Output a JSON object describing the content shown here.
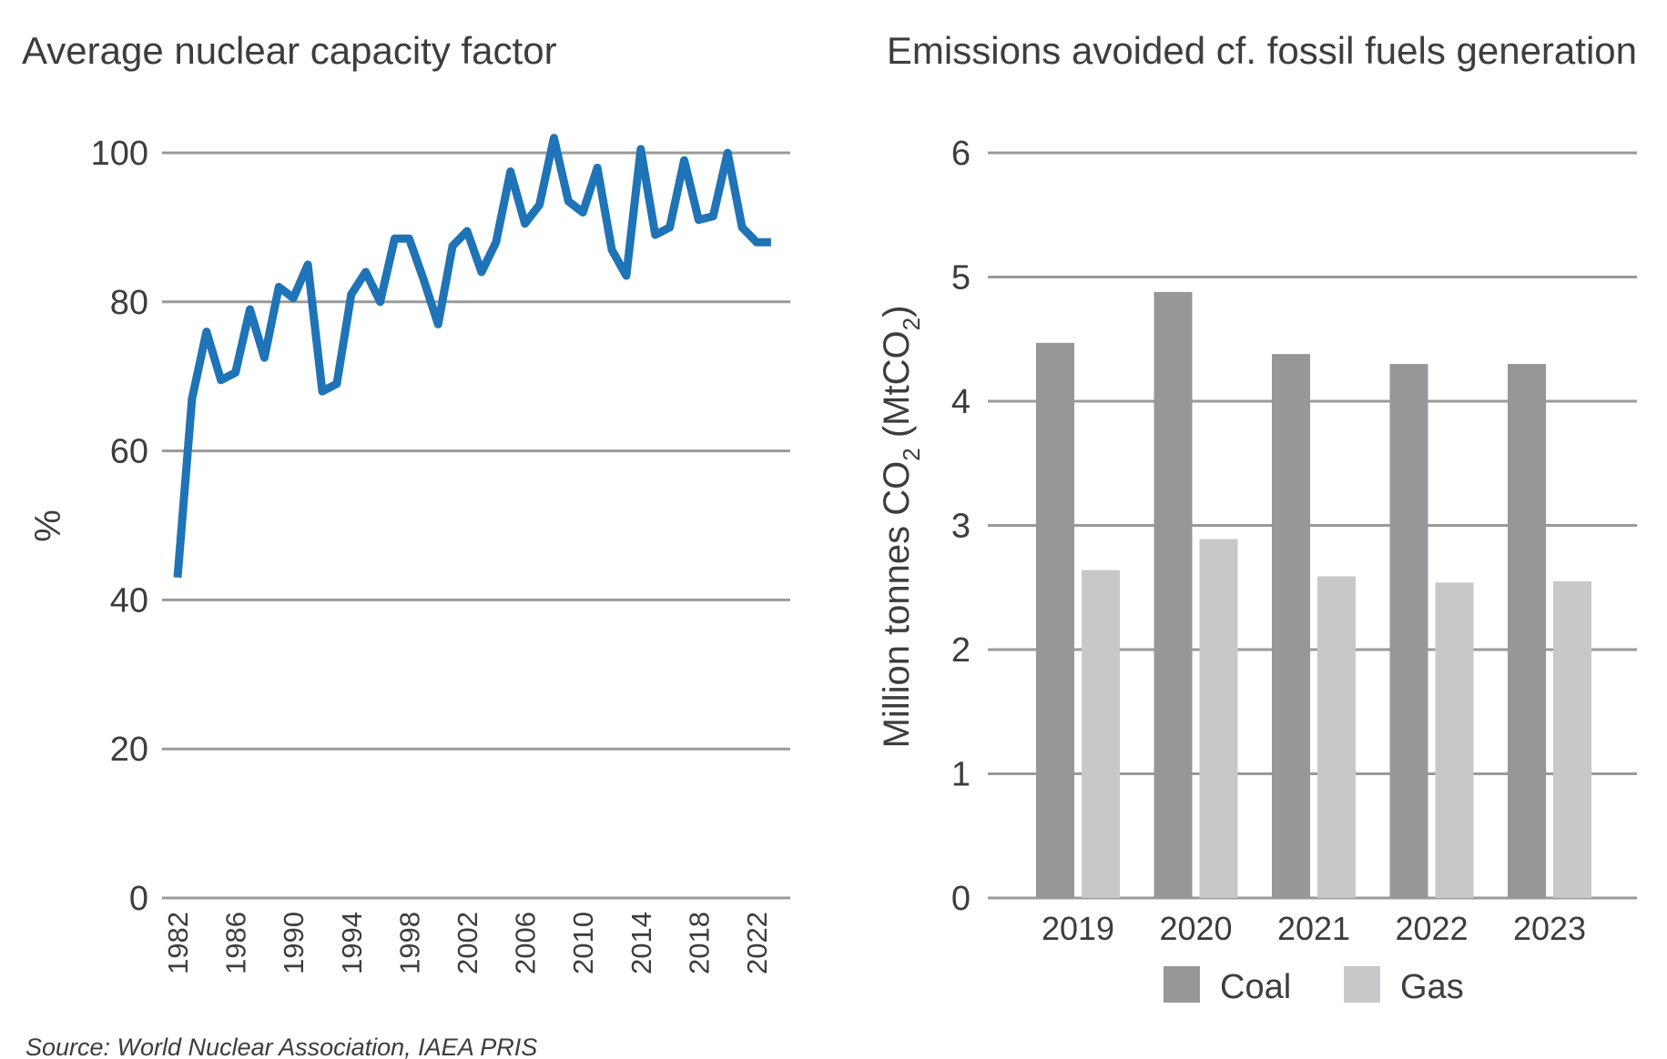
{
  "chart_data": [
    {
      "type": "line",
      "title": "Average nuclear capacity factor",
      "ylabel": "%",
      "xlabel": "",
      "ylim": [
        0,
        100
      ],
      "yticks": [
        "0",
        "20",
        "40",
        "60",
        "80",
        "100"
      ],
      "xtick_labels": [
        "1982",
        "1986",
        "1990",
        "1994",
        "1998",
        "2002",
        "2006",
        "2010",
        "2014",
        "2018",
        "2022"
      ],
      "grid": true,
      "series": [
        {
          "color": "#1f73b7",
          "x": [
            1982,
            1983,
            1984,
            1985,
            1986,
            1987,
            1988,
            1989,
            1990,
            1991,
            1992,
            1993,
            1994,
            1995,
            1996,
            1997,
            1998,
            1999,
            2000,
            2001,
            2002,
            2003,
            2004,
            2005,
            2006,
            2007,
            2008,
            2009,
            2010,
            2011,
            2012,
            2013,
            2014,
            2015,
            2016,
            2017,
            2018,
            2019,
            2020,
            2021,
            2022,
            2023
          ],
          "y": [
            43,
            67,
            76,
            69.5,
            70.5,
            79,
            72.5,
            82,
            80.5,
            85,
            68,
            69,
            81,
            84,
            80,
            88.5,
            88.5,
            83,
            77,
            87.5,
            89.5,
            84,
            88,
            97.5,
            90.5,
            93,
            102,
            93.5,
            92,
            98,
            87,
            83.5,
            100.5,
            89,
            90,
            99,
            91,
            91.5,
            100,
            90,
            88,
            88
          ]
        }
      ]
    },
    {
      "type": "bar",
      "title": "Emissions avoided cf. fossil fuels generation",
      "ylabel": "Million tonnes CO2 (MtCO2)",
      "ylabel_parts": [
        "Million tonnes CO",
        "2",
        " (MtCO",
        "2",
        ")"
      ],
      "xlabel": "",
      "ylim": [
        0,
        6
      ],
      "yticks": [
        "0",
        "1",
        "2",
        "3",
        "4",
        "5",
        "6"
      ],
      "categories": [
        "2019",
        "2020",
        "2021",
        "2022",
        "2023"
      ],
      "legend": "bottom",
      "grid": true,
      "series": [
        {
          "name": "Coal",
          "color": "#97979a",
          "values": [
            4.47,
            4.88,
            4.38,
            4.3,
            4.3
          ]
        },
        {
          "name": "Gas",
          "color": "#c8c8ca",
          "values": [
            2.64,
            2.89,
            2.59,
            2.54,
            2.55
          ]
        }
      ]
    }
  ],
  "source_note": "Source: World Nuclear Association, IAEA PRIS"
}
